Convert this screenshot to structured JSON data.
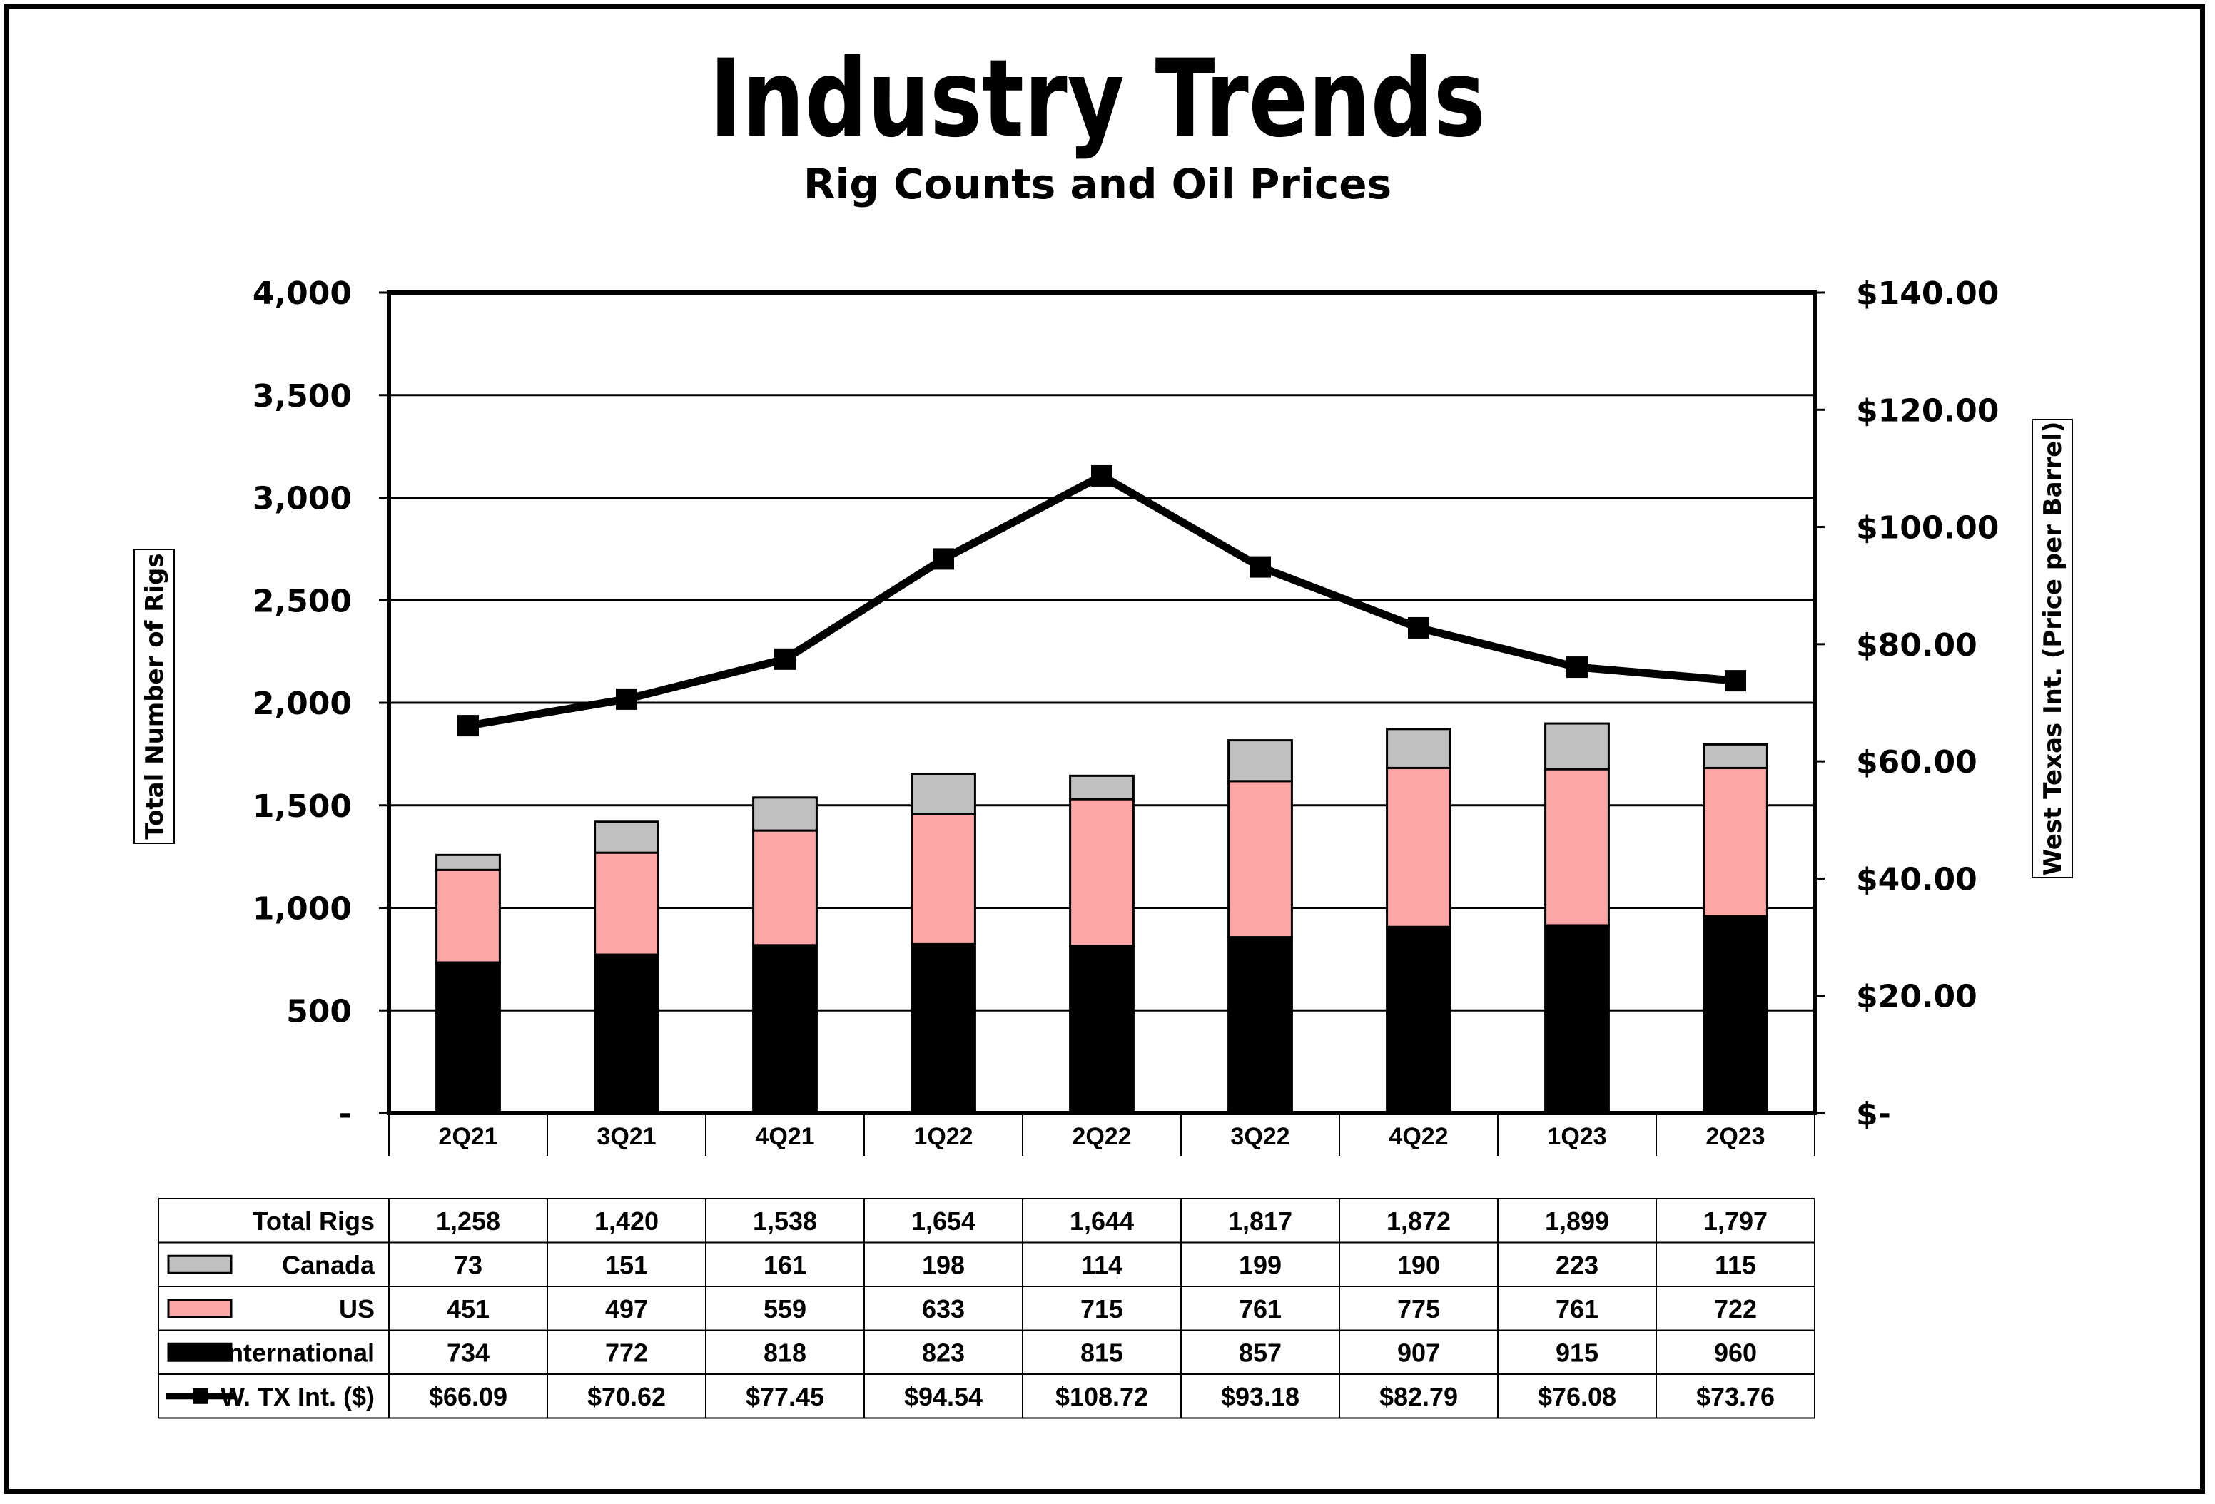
{
  "chart_data": {
    "type": "bar",
    "title": "Industry Trends",
    "subtitle": "Rig Counts and Oil Prices",
    "ylabel": "Total Number of Rigs",
    "y2label": "West Texas Int. (Price per Barrel)",
    "ylim": [
      0,
      4000
    ],
    "y2lim": [
      0,
      140
    ],
    "yticks": [
      "-",
      "500",
      "1,000",
      "1,500",
      "2,000",
      "2,500",
      "3,000",
      "3,500",
      "4,000"
    ],
    "y2ticks": [
      "$-",
      "$20.00",
      "$40.00",
      "$60.00",
      "$80.00",
      "$100.00",
      "$120.00",
      "$140.00"
    ],
    "grid": true,
    "stacked": true,
    "categories": [
      "2Q21",
      "3Q21",
      "4Q21",
      "1Q22",
      "2Q22",
      "3Q22",
      "4Q22",
      "1Q23",
      "2Q23"
    ],
    "series": [
      {
        "name": "International",
        "type": "bar",
        "color": "#000000",
        "values": [
          734,
          772,
          818,
          823,
          815,
          857,
          907,
          915,
          960
        ]
      },
      {
        "name": "US",
        "type": "bar",
        "color": "#FFA6A6",
        "values": [
          451,
          497,
          559,
          633,
          715,
          761,
          775,
          761,
          722
        ]
      },
      {
        "name": "Canada",
        "type": "bar",
        "color": "#C0C0C0",
        "values": [
          73,
          151,
          161,
          198,
          114,
          199,
          190,
          223,
          115
        ]
      },
      {
        "name": "W. TX Int. ($)",
        "type": "line",
        "axis": "right",
        "color": "#000000",
        "values": [
          66.09,
          70.62,
          77.45,
          94.54,
          108.72,
          93.18,
          82.79,
          76.08,
          73.76
        ]
      }
    ],
    "table": {
      "total_label": "Total Rigs",
      "totals": [
        "1,258",
        "1,420",
        "1,538",
        "1,654",
        "1,644",
        "1,817",
        "1,872",
        "1,899",
        "1,797"
      ],
      "rows": [
        {
          "label": "Canada",
          "legend": "canada",
          "values": [
            "73",
            "151",
            "161",
            "198",
            "114",
            "199",
            "190",
            "223",
            "115"
          ]
        },
        {
          "label": "US",
          "legend": "us",
          "values": [
            "451",
            "497",
            "559",
            "633",
            "715",
            "761",
            "775",
            "761",
            "722"
          ]
        },
        {
          "label": "International",
          "legend": "international",
          "values": [
            "734",
            "772",
            "818",
            "823",
            "815",
            "857",
            "907",
            "915",
            "960"
          ]
        },
        {
          "label": "W. TX Int. ($)",
          "legend": "wti",
          "values": [
            "$66.09",
            "$70.62",
            "$77.45",
            "$94.54",
            "$108.72",
            "$93.18",
            "$82.79",
            "$76.08",
            "$73.76"
          ]
        }
      ]
    }
  }
}
